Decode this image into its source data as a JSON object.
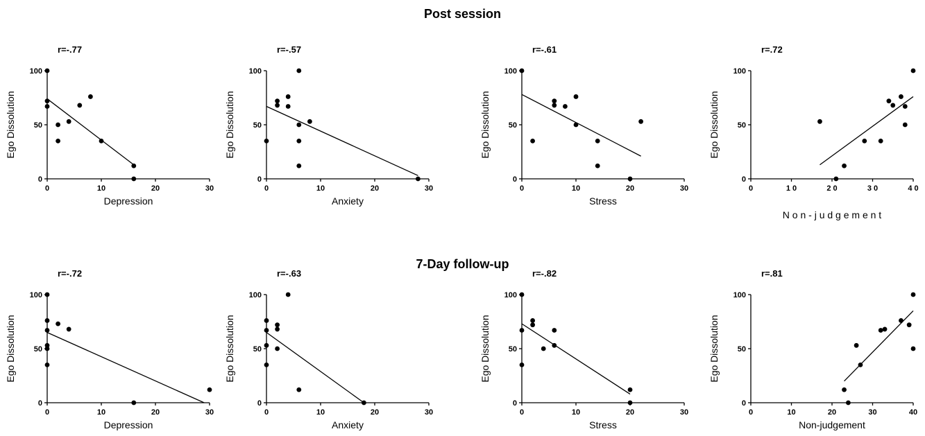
{
  "sections": [
    {
      "title": "Post session"
    },
    {
      "title": "7-Day follow-up"
    }
  ],
  "chart_data": [
    {
      "type": "scatter",
      "section": 0,
      "r_label": "r=-.77",
      "xlabel": "Depression",
      "ylabel": "Ego Dissolution",
      "xlim": [
        0,
        30
      ],
      "ylim": [
        0,
        100
      ],
      "xticks": [
        0,
        10,
        20,
        30
      ],
      "yticks": [
        0,
        50,
        100
      ],
      "tick_labels_x": [
        "0",
        "10",
        "20",
        "30"
      ],
      "tick_labels_y": [
        "0",
        "50",
        "100"
      ],
      "points": [
        [
          0,
          100
        ],
        [
          0,
          72
        ],
        [
          0,
          67
        ],
        [
          2,
          50
        ],
        [
          2,
          35
        ],
        [
          4,
          53
        ],
        [
          6,
          68
        ],
        [
          8,
          76
        ],
        [
          10,
          35
        ],
        [
          16,
          12
        ],
        [
          16,
          0
        ]
      ],
      "fit": [
        [
          0,
          74
        ],
        [
          16,
          13
        ]
      ]
    },
    {
      "type": "scatter",
      "section": 0,
      "r_label": "r=-.57",
      "xlabel": "Anxiety",
      "ylabel": "Ego Dissolution",
      "xlim": [
        0,
        30
      ],
      "ylim": [
        0,
        100
      ],
      "xticks": [
        0,
        10,
        20,
        30
      ],
      "yticks": [
        0,
        50,
        100
      ],
      "tick_labels_x": [
        "0",
        "10",
        "20",
        "30"
      ],
      "tick_labels_y": [
        "0",
        "50",
        "100"
      ],
      "points": [
        [
          0,
          35
        ],
        [
          2,
          72
        ],
        [
          2,
          68
        ],
        [
          4,
          76
        ],
        [
          4,
          67
        ],
        [
          6,
          100
        ],
        [
          6,
          50
        ],
        [
          6,
          35
        ],
        [
          6,
          12
        ],
        [
          8,
          53
        ],
        [
          28,
          0
        ]
      ],
      "fit": [
        [
          0,
          67
        ],
        [
          28,
          3
        ]
      ]
    },
    {
      "type": "scatter",
      "section": 0,
      "r_label": "r=-.61",
      "xlabel": "Stress",
      "ylabel": "Ego Dissolution",
      "xlim": [
        0,
        30
      ],
      "ylim": [
        0,
        100
      ],
      "xticks": [
        0,
        10,
        20,
        30
      ],
      "yticks": [
        0,
        50,
        100
      ],
      "tick_labels_x": [
        "0",
        "10",
        "20",
        "30"
      ],
      "tick_labels_y": [
        "0",
        "50",
        "100"
      ],
      "points": [
        [
          0,
          100
        ],
        [
          2,
          35
        ],
        [
          6,
          72
        ],
        [
          6,
          68
        ],
        [
          8,
          67
        ],
        [
          10,
          76
        ],
        [
          10,
          50
        ],
        [
          14,
          35
        ],
        [
          14,
          12
        ],
        [
          20,
          0
        ],
        [
          22,
          53
        ]
      ],
      "fit": [
        [
          0,
          78
        ],
        [
          22,
          21
        ]
      ]
    },
    {
      "type": "scatter",
      "section": 0,
      "r_label": "r=.72",
      "xlabel": "N o n - j u d g e m e n t",
      "ylabel": "Ego Dissolution",
      "xlim": [
        0,
        40
      ],
      "ylim": [
        0,
        100
      ],
      "xticks": [
        0,
        10,
        20,
        30,
        40
      ],
      "yticks": [
        0,
        50,
        100
      ],
      "tick_labels_x": [
        "0",
        "1 0",
        "2 0",
        "3 0",
        "4 0"
      ],
      "tick_labels_y": [
        "0",
        "50",
        "100"
      ],
      "points": [
        [
          17,
          53
        ],
        [
          21,
          0
        ],
        [
          23,
          12
        ],
        [
          28,
          35
        ],
        [
          32,
          35
        ],
        [
          34,
          72
        ],
        [
          35,
          68
        ],
        [
          37,
          76
        ],
        [
          38,
          67
        ],
        [
          38,
          50
        ],
        [
          40,
          100
        ]
      ],
      "fit": [
        [
          17,
          13
        ],
        [
          40,
          76
        ]
      ]
    },
    {
      "type": "scatter",
      "section": 1,
      "r_label": "r=-.72",
      "xlabel": "Depression",
      "ylabel": "Ego Dissolution",
      "xlim": [
        0,
        30
      ],
      "ylim": [
        0,
        100
      ],
      "xticks": [
        0,
        10,
        20,
        30
      ],
      "yticks": [
        0,
        50,
        100
      ],
      "tick_labels_x": [
        "0",
        "10",
        "20",
        "30"
      ],
      "tick_labels_y": [
        "0",
        "50",
        "100"
      ],
      "points": [
        [
          0,
          100
        ],
        [
          0,
          76
        ],
        [
          0,
          67
        ],
        [
          0,
          53
        ],
        [
          0,
          50
        ],
        [
          0,
          35
        ],
        [
          2,
          73
        ],
        [
          4,
          68
        ],
        [
          16,
          0
        ],
        [
          30,
          12
        ]
      ],
      "fit": [
        [
          0,
          65
        ],
        [
          29,
          0
        ]
      ]
    },
    {
      "type": "scatter",
      "section": 1,
      "r_label": "r=-.63",
      "xlabel": "Anxiety",
      "ylabel": "Ego Dissolution",
      "xlim": [
        0,
        30
      ],
      "ylim": [
        0,
        100
      ],
      "xticks": [
        0,
        10,
        20,
        30
      ],
      "yticks": [
        0,
        50,
        100
      ],
      "tick_labels_x": [
        "0",
        "10",
        "20",
        "30"
      ],
      "tick_labels_y": [
        "0",
        "50",
        "100"
      ],
      "points": [
        [
          0,
          76
        ],
        [
          0,
          67
        ],
        [
          0,
          53
        ],
        [
          0,
          35
        ],
        [
          2,
          72
        ],
        [
          2,
          68
        ],
        [
          2,
          50
        ],
        [
          4,
          100
        ],
        [
          6,
          12
        ],
        [
          18,
          0
        ]
      ],
      "fit": [
        [
          0,
          65
        ],
        [
          18,
          0
        ]
      ]
    },
    {
      "type": "scatter",
      "section": 1,
      "r_label": "r=-.82",
      "xlabel": "Stress",
      "ylabel": "Ego Dissolution",
      "xlim": [
        0,
        30
      ],
      "ylim": [
        0,
        100
      ],
      "xticks": [
        0,
        10,
        20,
        30
      ],
      "yticks": [
        0,
        50,
        100
      ],
      "tick_labels_x": [
        "0",
        "10",
        "20",
        "30"
      ],
      "tick_labels_y": [
        "0",
        "50",
        "100"
      ],
      "points": [
        [
          0,
          100
        ],
        [
          0,
          67
        ],
        [
          0,
          35
        ],
        [
          2,
          76
        ],
        [
          2,
          72
        ],
        [
          4,
          50
        ],
        [
          6,
          67
        ],
        [
          6,
          53
        ],
        [
          20,
          12
        ],
        [
          20,
          0
        ]
      ],
      "fit": [
        [
          0,
          73
        ],
        [
          20,
          8
        ]
      ]
    },
    {
      "type": "scatter",
      "section": 1,
      "r_label": "r=.81",
      "xlabel": "Non-judgement",
      "ylabel": "Ego Dissolution",
      "xlim": [
        0,
        40
      ],
      "ylim": [
        0,
        100
      ],
      "xticks": [
        0,
        10,
        20,
        30,
        40
      ],
      "yticks": [
        0,
        50,
        100
      ],
      "tick_labels_x": [
        "0",
        "10",
        "20",
        "30",
        "40"
      ],
      "tick_labels_y": [
        "0",
        "50",
        "100"
      ],
      "points": [
        [
          23,
          12
        ],
        [
          24,
          0
        ],
        [
          26,
          53
        ],
        [
          27,
          35
        ],
        [
          32,
          67
        ],
        [
          33,
          68
        ],
        [
          37,
          76
        ],
        [
          39,
          72
        ],
        [
          40,
          100
        ],
        [
          40,
          50
        ]
      ],
      "fit": [
        [
          23,
          20
        ],
        [
          40,
          85
        ]
      ]
    }
  ]
}
